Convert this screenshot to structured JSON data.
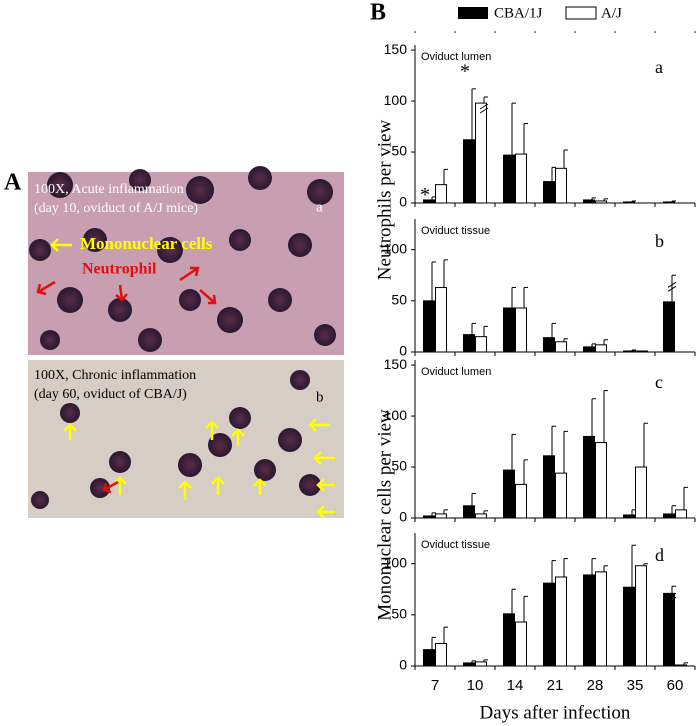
{
  "panel_a": {
    "label": "A",
    "top": {
      "caption_1": "100X, Acute inflammation",
      "caption_2": "(day 10, oviduct of A/J mice)",
      "letter": "a",
      "mononuclear": "Mononuclear cells",
      "neutrophil": "Neutrophil"
    },
    "bottom": {
      "caption_1": "100X, Chronic inflammation",
      "caption_2": "(day 60, oviduct of CBA/J)",
      "letter": "b"
    }
  },
  "panel_b": {
    "label": "B",
    "ylabel_top": "Neutrophils per view",
    "ylabel_bottom": "Mononuclear cells per view",
    "xlabel": "Days after infection"
  },
  "chart_data": [
    {
      "type": "bar",
      "subtitle": "Oviduct lumen",
      "letter": "a",
      "ylim": [
        0,
        155
      ],
      "yticks": [
        0,
        50,
        100,
        150
      ],
      "annotations": [
        "*",
        "*"
      ],
      "series": [
        {
          "name": "CBA/1J",
          "color": "#000000",
          "values": [
            3,
            62,
            47,
            21,
            3,
            1,
            1
          ],
          "errors": [
            3,
            50,
            51,
            14,
            2,
            1,
            1
          ]
        },
        {
          "name": "A/J",
          "color": "#ffffff",
          "values": [
            18,
            98,
            48,
            34,
            2,
            0,
            0
          ],
          "errors": [
            15,
            6,
            30,
            18,
            2,
            0,
            0
          ]
        }
      ]
    },
    {
      "type": "bar",
      "subtitle": "Oviduct tissue",
      "letter": "b",
      "ylim": [
        0,
        130
      ],
      "yticks": [
        0,
        50,
        100
      ],
      "series": [
        {
          "color": "#000000",
          "values": [
            50,
            17,
            43,
            14,
            5,
            1,
            49
          ],
          "errors": [
            38,
            11,
            20,
            14,
            3,
            1,
            26
          ]
        },
        {
          "color": "#ffffff",
          "values": [
            63,
            15,
            43,
            10,
            7,
            1,
            0
          ],
          "errors": [
            27,
            10,
            20,
            3,
            5,
            0,
            0
          ]
        }
      ]
    },
    {
      "type": "bar",
      "subtitle": "Oviduct lumen",
      "letter": "c",
      "ylim": [
        0,
        155
      ],
      "yticks": [
        0,
        50,
        100,
        150
      ],
      "series": [
        {
          "color": "#000000",
          "values": [
            2,
            12,
            47,
            61,
            80,
            3,
            4
          ],
          "errors": [
            3,
            12,
            35,
            29,
            37,
            5,
            8
          ]
        },
        {
          "color": "#ffffff",
          "values": [
            4,
            4,
            33,
            44,
            74,
            50,
            8
          ],
          "errors": [
            4,
            3,
            24,
            41,
            51,
            43,
            22
          ]
        }
      ]
    },
    {
      "type": "bar",
      "subtitle": "Oviduct tissue",
      "letter": "d",
      "ylim": [
        0,
        130
      ],
      "yticks": [
        0,
        50,
        100
      ],
      "categories": [
        "7",
        "10",
        "14",
        "21",
        "28",
        "35",
        "60"
      ],
      "series": [
        {
          "color": "#000000",
          "values": [
            16,
            3,
            51,
            81,
            89,
            77,
            71
          ],
          "errors": [
            12,
            2,
            24,
            22,
            16,
            41,
            7
          ]
        },
        {
          "color": "#ffffff",
          "values": [
            22,
            4,
            43,
            87,
            92,
            98,
            1
          ],
          "errors": [
            16,
            2,
            25,
            18,
            6,
            2,
            2
          ]
        }
      ]
    }
  ]
}
